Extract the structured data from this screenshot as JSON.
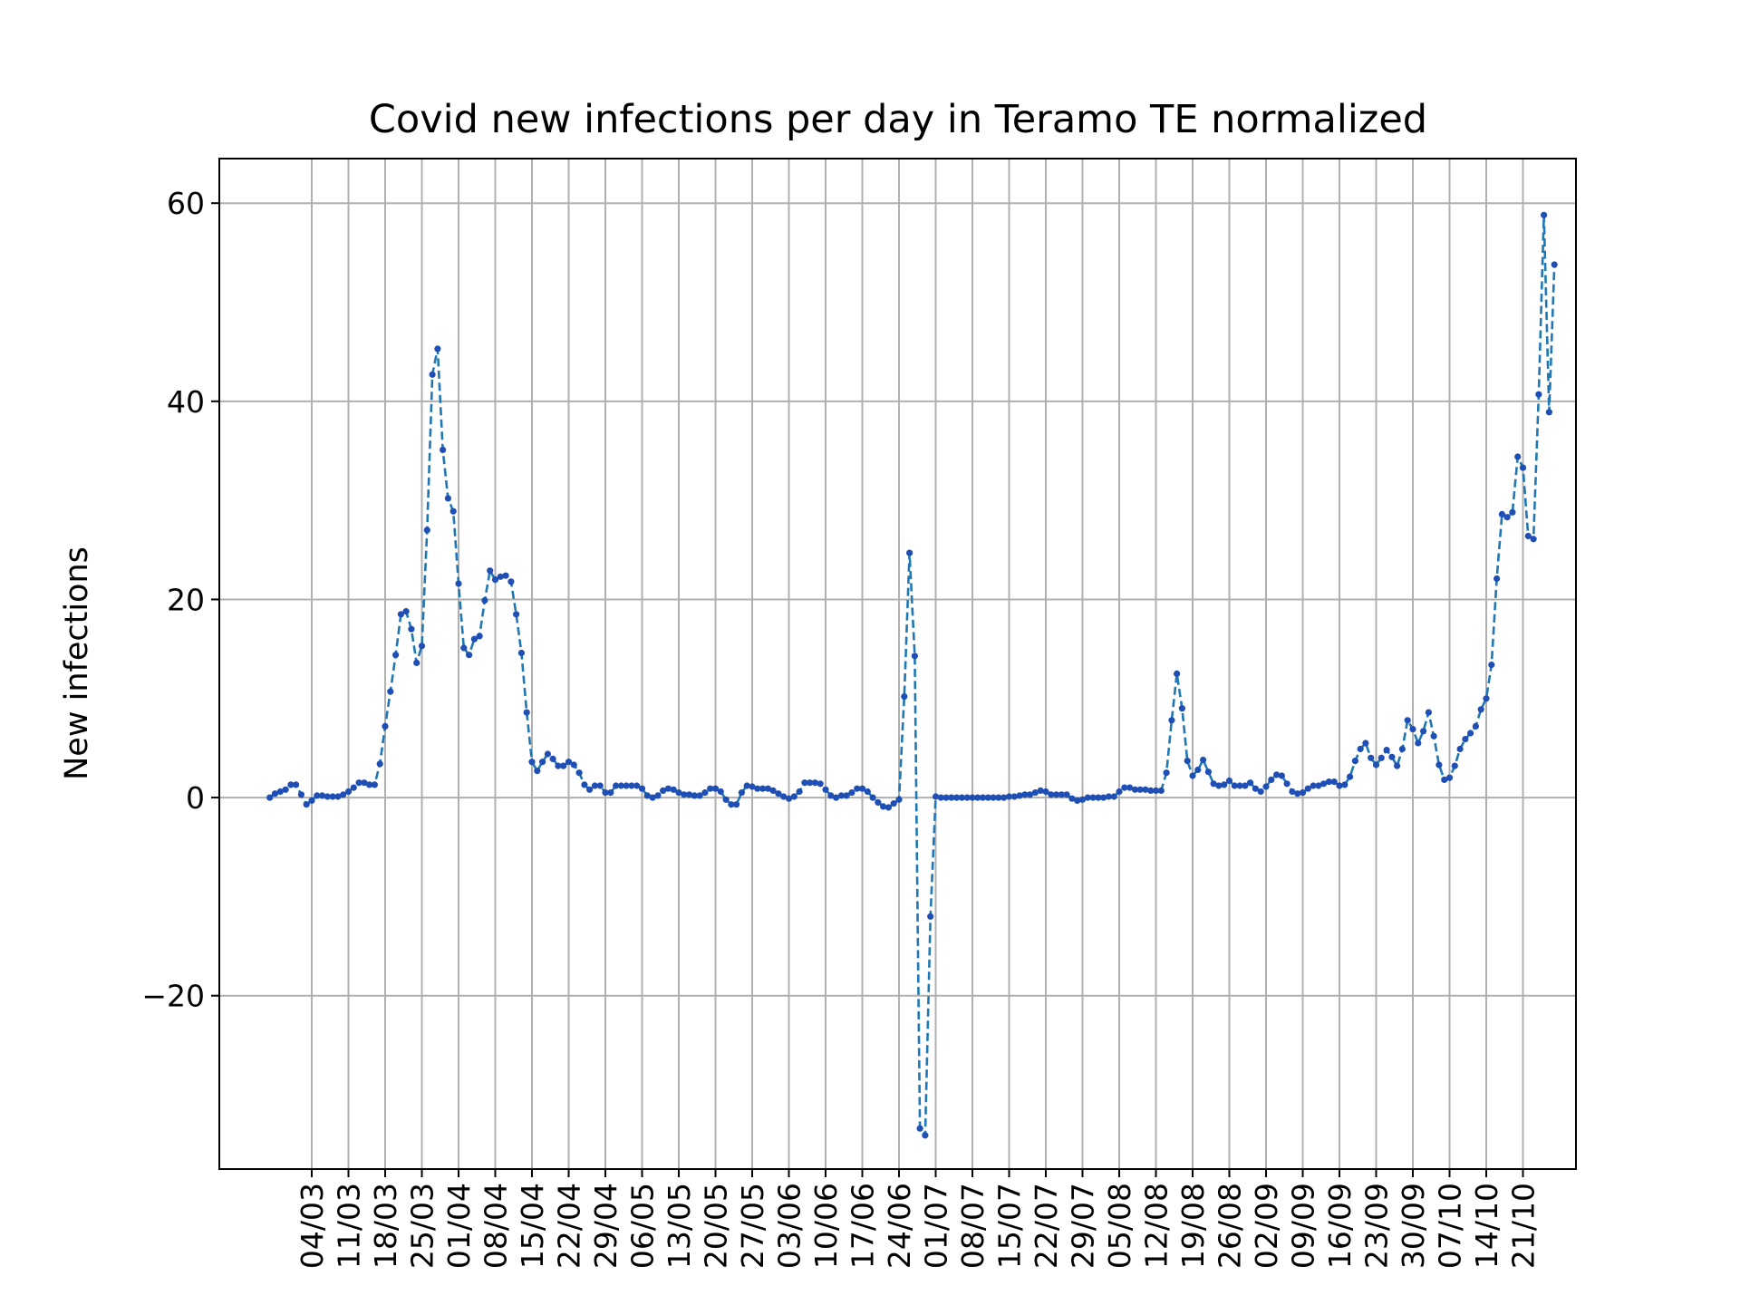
{
  "chart_data": {
    "type": "line",
    "title": "Covid new infections per day in Teramo TE normalized",
    "xlabel": "",
    "ylabel": "New infections",
    "x_start_date": "2020-02-25",
    "xticks": [
      "04/03",
      "11/03",
      "18/03",
      "25/03",
      "01/04",
      "08/04",
      "15/04",
      "22/04",
      "29/04",
      "06/05",
      "13/05",
      "20/05",
      "27/05",
      "03/06",
      "10/06",
      "17/06",
      "24/06",
      "01/07",
      "08/07",
      "15/07",
      "22/07",
      "29/07",
      "05/08",
      "12/08",
      "19/08",
      "26/08",
      "02/09",
      "09/09",
      "16/09",
      "23/09",
      "30/09",
      "07/10",
      "14/10",
      "21/10"
    ],
    "yticks": [
      -20,
      0,
      20,
      40,
      60
    ],
    "ylim": [
      -37.5,
      64.5
    ],
    "grid": true,
    "legend": "none",
    "line_style": "dashed",
    "marker": "dot",
    "colors": {
      "line": "#1f77b4",
      "marker": "#1f4fb4",
      "grid": "#b0b0b0"
    },
    "series": [
      {
        "values": [
          0.0,
          0.4,
          0.6,
          0.8,
          1.3,
          1.3,
          0.3,
          -0.7,
          -0.3,
          0.2,
          0.2,
          0.1,
          0.1,
          0.1,
          0.3,
          0.6,
          1.0,
          1.5,
          1.5,
          1.3,
          1.3,
          3.4,
          7.2,
          10.7,
          14.4,
          18.5,
          18.8,
          17.0,
          13.6,
          15.3,
          27.0,
          42.7,
          45.3,
          35.1,
          30.2,
          28.9,
          21.6,
          15.1,
          14.4,
          16.0,
          16.3,
          19.9,
          22.9,
          22.0,
          22.3,
          22.4,
          21.8,
          18.5,
          14.6,
          8.6,
          3.6,
          2.7,
          3.6,
          4.4,
          3.9,
          3.2,
          3.2,
          3.6,
          3.3,
          2.5,
          1.3,
          0.8,
          1.2,
          1.2,
          0.5,
          0.5,
          1.2,
          1.2,
          1.2,
          1.2,
          1.2,
          0.9,
          0.2,
          0.0,
          0.2,
          0.7,
          0.9,
          0.8,
          0.5,
          0.3,
          0.3,
          0.2,
          0.2,
          0.5,
          0.9,
          0.9,
          0.6,
          -0.2,
          -0.7,
          -0.7,
          0.5,
          1.2,
          1.1,
          0.9,
          0.9,
          0.9,
          0.7,
          0.4,
          0.1,
          -0.1,
          0.1,
          0.6,
          1.5,
          1.5,
          1.5,
          1.4,
          0.8,
          0.2,
          0.0,
          0.2,
          0.2,
          0.5,
          0.9,
          0.9,
          0.6,
          0.0,
          -0.5,
          -0.9,
          -1.0,
          -0.6,
          -0.2,
          10.2,
          24.7,
          14.3,
          -33.4,
          -34.1,
          -12.0,
          0.1,
          0.0,
          0.0,
          0.0,
          0.0,
          0.0,
          0.0,
          0.0,
          0.0,
          0.0,
          0.0,
          0.0,
          0.0,
          0.0,
          0.1,
          0.1,
          0.2,
          0.3,
          0.3,
          0.5,
          0.7,
          0.6,
          0.3,
          0.3,
          0.3,
          0.3,
          -0.1,
          -0.3,
          -0.2,
          0.0,
          0.0,
          0.0,
          0.0,
          0.1,
          0.1,
          0.6,
          1.0,
          1.0,
          0.8,
          0.8,
          0.8,
          0.7,
          0.7,
          0.7,
          2.5,
          7.8,
          12.5,
          9.0,
          3.7,
          2.2,
          2.8,
          3.8,
          2.6,
          1.4,
          1.2,
          1.3,
          1.7,
          1.2,
          1.2,
          1.2,
          1.5,
          0.9,
          0.6,
          1.1,
          1.8,
          2.3,
          2.2,
          1.4,
          0.6,
          0.4,
          0.5,
          0.9,
          1.2,
          1.2,
          1.4,
          1.6,
          1.6,
          1.2,
          1.3,
          2.1,
          3.7,
          4.9,
          5.5,
          4.0,
          3.3,
          4.0,
          4.8,
          4.1,
          3.2,
          4.9,
          7.8,
          6.9,
          5.5,
          6.7,
          8.6,
          6.2,
          3.3,
          1.8,
          2.0,
          3.2,
          4.9,
          5.9,
          6.5,
          7.2,
          8.9,
          10.0,
          13.4,
          22.1,
          28.6,
          28.3,
          28.8,
          34.4,
          33.3,
          26.4,
          26.1,
          40.7,
          58.8,
          38.9,
          53.8
        ]
      }
    ]
  }
}
